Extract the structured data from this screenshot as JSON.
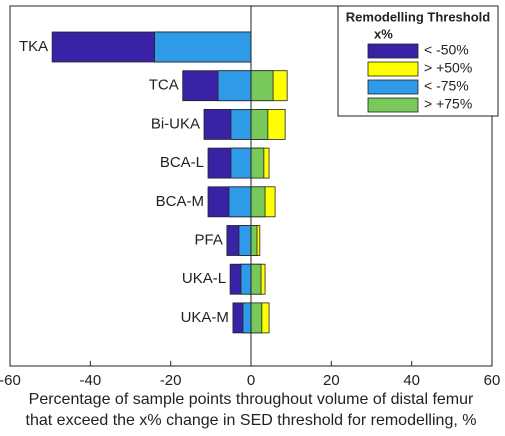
{
  "chart_data": {
    "type": "overlap-barh",
    "categories": [
      "TKA",
      "TCA",
      "Bi-UKA",
      "BCA-L",
      "BCA-M",
      "PFA",
      "UKA-L",
      "UKA-M"
    ],
    "series": [
      {
        "name": "< -50%",
        "color": "#3a22a6",
        "values": [
          -49.5,
          -17,
          -11.7,
          -10.7,
          -10.7,
          -6,
          -5.2,
          -4.5
        ]
      },
      {
        "name": "> +50%",
        "color": "#ffff00",
        "values": [
          0,
          9,
          8.5,
          4.5,
          6,
          2.2,
          3.5,
          4.5
        ]
      },
      {
        "name": "< -75%",
        "color": "#2f9be8",
        "values": [
          -24,
          -8.2,
          -5,
          -5,
          -5.5,
          -3,
          -2.5,
          -2
        ]
      },
      {
        "name": "> +75%",
        "color": "#77c95a",
        "values": [
          0,
          5.5,
          4.2,
          3.2,
          3.5,
          1.5,
          2.5,
          2.7
        ]
      }
    ],
    "xlim": [
      -60,
      60
    ],
    "xticks": [
      -60,
      -40,
      -20,
      0,
      20,
      40,
      60
    ],
    "xlabel": [
      "Percentage of sample points throughout volume of distal femur",
      "that exceed the x% change in SED threshold for remodelling, %"
    ],
    "legend_title": [
      "Remodelling Threshold",
      "x%"
    ],
    "legend": "upper right"
  }
}
